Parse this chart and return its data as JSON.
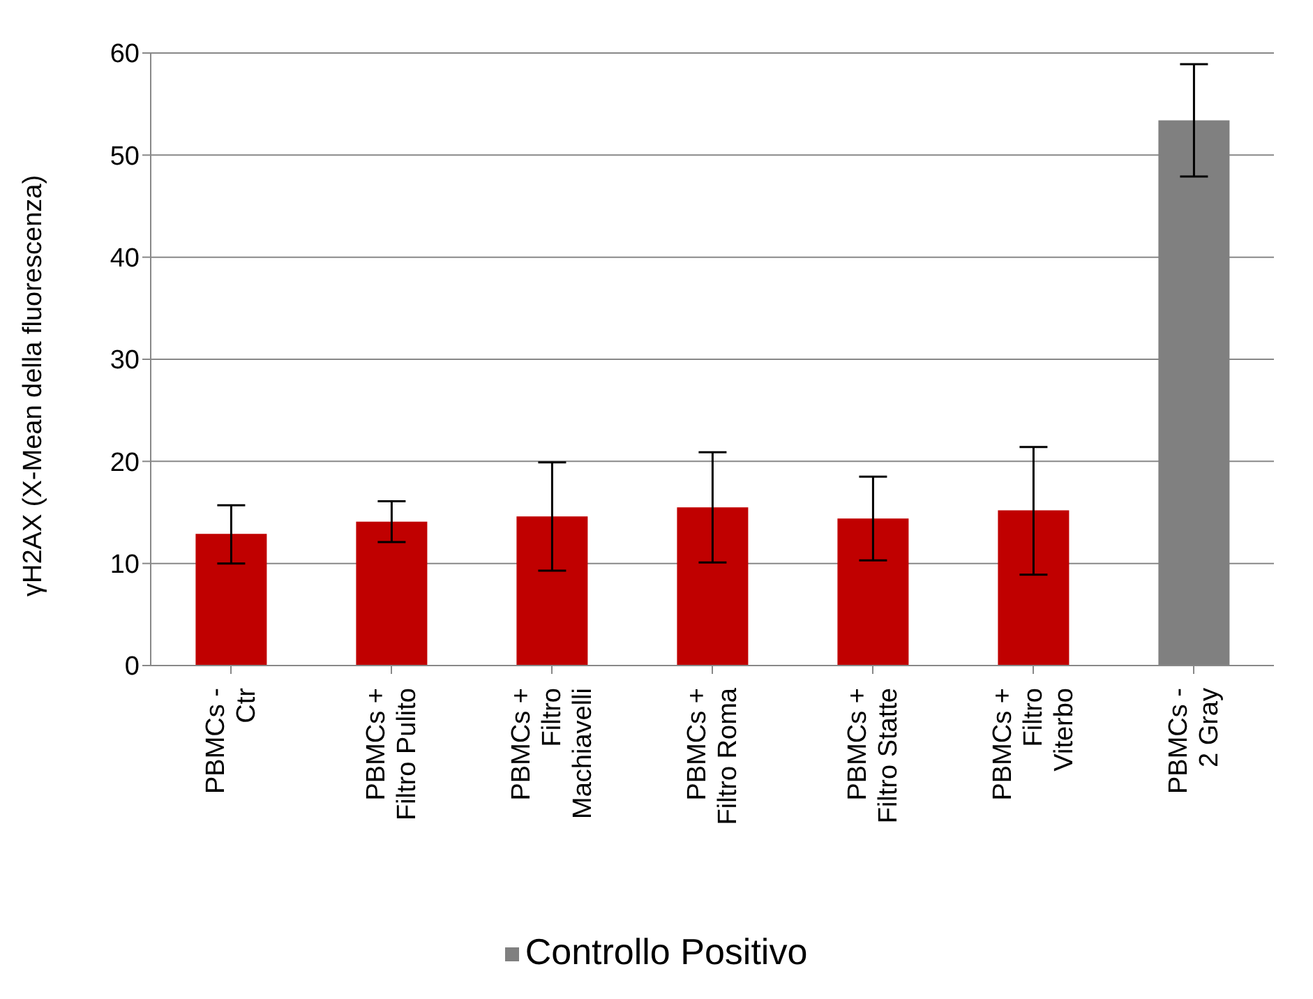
{
  "chart_data": {
    "type": "bar",
    "ylabel": "γH2AX (X-Mean della fluorescenza)",
    "categories": [
      "PBMCs - Ctr",
      "PBMCs + Filtro Pulito",
      "PBMCs + Filtro Machiavelli",
      "PBMCs + Filtro Roma",
      "PBMCs + Filtro Statte",
      "PBMCs + Filtro Viterbo",
      "PBMCs - 2 Gray"
    ],
    "stacked": true,
    "series": [
      {
        "color": "#c00000",
        "values": [
          12.9,
          14.1,
          14.6,
          15.5,
          14.4,
          15.2,
          null
        ],
        "errors": [
          [
            10.0,
            15.7
          ],
          [
            12.1,
            16.1
          ],
          [
            9.3,
            19.9
          ],
          [
            10.1,
            20.9
          ],
          [
            10.3,
            18.5
          ],
          [
            8.9,
            21.4
          ],
          null
        ]
      },
      {
        "name": "Controllo Positivo",
        "color": "#808080",
        "values": [
          null,
          null,
          null,
          null,
          null,
          null,
          53.4
        ],
        "errors": [
          null,
          null,
          null,
          null,
          null,
          null,
          [
            47.9,
            58.9
          ]
        ]
      }
    ],
    "ylim": [
      0,
      60
    ],
    "yticks": [
      0,
      10,
      20,
      30,
      40,
      50,
      60
    ],
    "grid": "y",
    "legend": "bottom"
  }
}
